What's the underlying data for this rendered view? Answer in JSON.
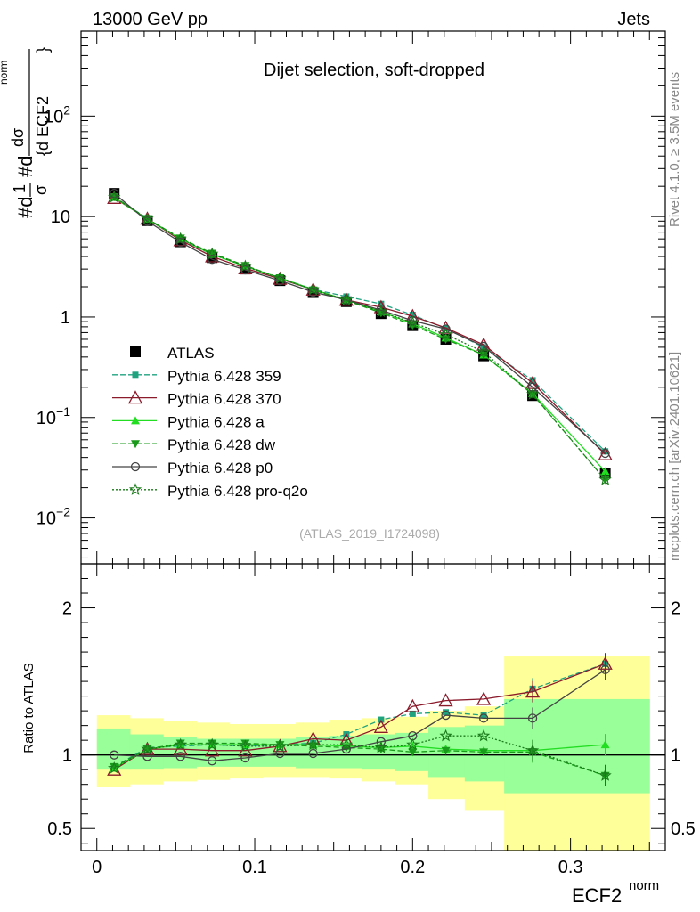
{
  "header": {
    "left": "13000 GeV pp",
    "right": "Jets"
  },
  "side_text": {
    "rivet": "Rivet 4.1.0, ≥ 3.5M events",
    "mcplots": "mcplots.cern.ch [arXiv:2401.10621]"
  },
  "colors": {
    "atlas": "#000000",
    "p359": "#1fa37f",
    "p370": "#8b1a2b",
    "pa": "#22dd22",
    "pdw": "#1a9a1a",
    "pp0": "#444444",
    "pq2o": "#1a7a1a",
    "yellow_band": "#ffff99",
    "green_band": "#99ff99"
  },
  "chart_data": [
    {
      "type": "line",
      "title": "Dijet selection, soft-dropped",
      "watermark": "(ATLAS_2019_I1724098)",
      "ylabel": "#d¹/σ #d dσ / {d ECF2 norm}",
      "ylabel_parts": {
        "a": "#d",
        "frac1_num": "1",
        "frac1_den": "σ",
        "b": "#d",
        "frac2_num": "dσ",
        "frac2_den": "{d ECF2",
        "sup": "norm",
        "close": "}"
      },
      "yscale": "log",
      "ylim": [
        0.0035,
        700
      ],
      "xlim": [
        -0.01,
        0.36
      ],
      "ytick_labels": [
        {
          "value": 0.01,
          "base": "10",
          "exp": "−2"
        },
        {
          "value": 0.1,
          "base": "10",
          "exp": "−1"
        },
        {
          "value": 1,
          "base": "1",
          "exp": ""
        },
        {
          "value": 10,
          "base": "10",
          "exp": ""
        },
        {
          "value": 100,
          "base": "10",
          "exp": "2"
        }
      ],
      "x": [
        0.011,
        0.032,
        0.053,
        0.073,
        0.094,
        0.116,
        0.137,
        0.158,
        0.18,
        0.2,
        0.221,
        0.245,
        0.276,
        0.322
      ],
      "series": [
        {
          "name": "ATLAS",
          "key": "atlas",
          "marker": "square",
          "values": [
            17.0,
            9.1,
            5.6,
            3.9,
            3.0,
            2.3,
            1.75,
            1.42,
            1.08,
            0.82,
            0.6,
            0.41,
            0.165,
            0.028
          ]
        },
        {
          "name": "Pythia 6.428 359",
          "key": "p359",
          "marker": "square-small",
          "dash": "6,3",
          "values": [
            15.6,
            9.6,
            5.9,
            4.2,
            3.2,
            2.45,
            1.88,
            1.6,
            1.35,
            1.05,
            0.77,
            0.5,
            0.235,
            0.046
          ]
        },
        {
          "name": "Pythia 6.428 370",
          "key": "p370",
          "marker": "triangle-open",
          "values": [
            15.3,
            9.5,
            5.8,
            4.0,
            3.05,
            2.4,
            1.87,
            1.48,
            1.25,
            1.02,
            0.78,
            0.53,
            0.22,
            0.043
          ]
        },
        {
          "name": "Pythia 6.428 a",
          "key": "pa",
          "marker": "triangle",
          "values": [
            15.5,
            9.4,
            6.0,
            4.2,
            3.2,
            2.45,
            1.88,
            1.48,
            1.13,
            0.86,
            0.62,
            0.42,
            0.173,
            0.029
          ]
        },
        {
          "name": "Pythia 6.428 dw",
          "key": "pdw",
          "marker": "triangle-down",
          "dash": "6,3",
          "values": [
            15.7,
            9.5,
            6.1,
            4.3,
            3.25,
            2.45,
            1.85,
            1.46,
            1.1,
            0.83,
            0.6,
            0.42,
            0.17,
            0.024
          ]
        },
        {
          "name": "Pythia 6.428 p0",
          "key": "pp0",
          "marker": "circle-open",
          "values": [
            17.0,
            9.0,
            5.55,
            3.75,
            2.95,
            2.3,
            1.77,
            1.48,
            1.17,
            0.92,
            0.76,
            0.51,
            0.2,
            0.044
          ]
        },
        {
          "name": "Pythia 6.428 pro-q2o",
          "key": "pq2o",
          "marker": "star-open",
          "dash": "2,2",
          "values": [
            15.6,
            9.5,
            6.0,
            4.25,
            3.2,
            2.42,
            1.88,
            1.47,
            1.13,
            0.88,
            0.67,
            0.45,
            0.17,
            0.024
          ]
        }
      ]
    },
    {
      "type": "line",
      "ylabel": "Ratio to ATLAS",
      "xlabel": "ECF2",
      "xlabel_sup": "norm",
      "ylim": [
        0.35,
        2.3
      ],
      "xlim": [
        -0.01,
        0.36
      ],
      "xticks": [
        0,
        0.1,
        0.2,
        0.3
      ],
      "xtick_labels": [
        "0",
        "0.1",
        "0.2",
        "0.3"
      ],
      "yticks": [
        0.5,
        1,
        2
      ],
      "ytick_labels": [
        "0.5",
        "1",
        "2"
      ],
      "bins": [
        0,
        0.021,
        0.042,
        0.063,
        0.084,
        0.105,
        0.126,
        0.147,
        0.168,
        0.189,
        0.21,
        0.233,
        0.258,
        0.295,
        0.35
      ],
      "yellow_band": [
        [
          0.78,
          1.27
        ],
        [
          0.8,
          1.25
        ],
        [
          0.82,
          1.23
        ],
        [
          0.83,
          1.22
        ],
        [
          0.84,
          1.21
        ],
        [
          0.85,
          1.21
        ],
        [
          0.85,
          1.22
        ],
        [
          0.84,
          1.24
        ],
        [
          0.82,
          1.25
        ],
        [
          0.8,
          1.26
        ],
        [
          0.7,
          1.3
        ],
        [
          0.62,
          1.33
        ],
        [
          0.35,
          1.67
        ],
        [
          0.35,
          1.67
        ]
      ],
      "green_band": [
        [
          0.9,
          1.18
        ],
        [
          0.9,
          1.14
        ],
        [
          0.91,
          1.12
        ],
        [
          0.92,
          1.11
        ],
        [
          0.92,
          1.11
        ],
        [
          0.92,
          1.11
        ],
        [
          0.91,
          1.12
        ],
        [
          0.91,
          1.13
        ],
        [
          0.9,
          1.14
        ],
        [
          0.89,
          1.15
        ],
        [
          0.85,
          1.19
        ],
        [
          0.82,
          1.2
        ],
        [
          0.74,
          1.38
        ],
        [
          0.74,
          1.38
        ]
      ],
      "x": [
        0.011,
        0.032,
        0.053,
        0.073,
        0.094,
        0.116,
        0.137,
        0.158,
        0.18,
        0.2,
        0.221,
        0.245,
        0.276,
        0.322
      ],
      "reference": 1,
      "series": [
        {
          "name": "Pythia 6.428 359",
          "key": "p359",
          "values": [
            0.92,
            1.05,
            1.06,
            1.07,
            1.06,
            1.07,
            1.08,
            1.14,
            1.24,
            1.28,
            1.29,
            1.27,
            1.45,
            1.62
          ]
        },
        {
          "name": "Pythia 6.428 370",
          "key": "p370",
          "values": [
            0.9,
            1.04,
            1.04,
            1.03,
            1.03,
            1.06,
            1.11,
            1.1,
            1.19,
            1.33,
            1.37,
            1.38,
            1.43,
            1.62
          ]
        },
        {
          "name": "Pythia 6.428 a",
          "key": "pa",
          "values": [
            0.91,
            1.04,
            1.07,
            1.07,
            1.07,
            1.07,
            1.07,
            1.06,
            1.05,
            1.06,
            1.04,
            1.03,
            1.03,
            1.07
          ]
        },
        {
          "name": "Pythia 6.428 dw",
          "key": "pdw",
          "values": [
            0.92,
            1.04,
            1.08,
            1.08,
            1.08,
            1.07,
            1.06,
            1.05,
            1.04,
            1.02,
            1.03,
            1.02,
            1.02,
            0.86
          ]
        },
        {
          "name": "Pythia 6.428 p0",
          "key": "pp0",
          "values": [
            1.0,
            0.99,
            0.99,
            0.96,
            0.98,
            1.01,
            1.01,
            1.04,
            1.09,
            1.13,
            1.27,
            1.25,
            1.25,
            1.58
          ]
        },
        {
          "name": "Pythia 6.428 pro-q2o",
          "key": "pq2o",
          "values": [
            0.91,
            1.04,
            1.07,
            1.07,
            1.06,
            1.06,
            1.07,
            1.07,
            1.05,
            1.07,
            1.13,
            1.13,
            1.03,
            0.86
          ]
        }
      ]
    }
  ]
}
